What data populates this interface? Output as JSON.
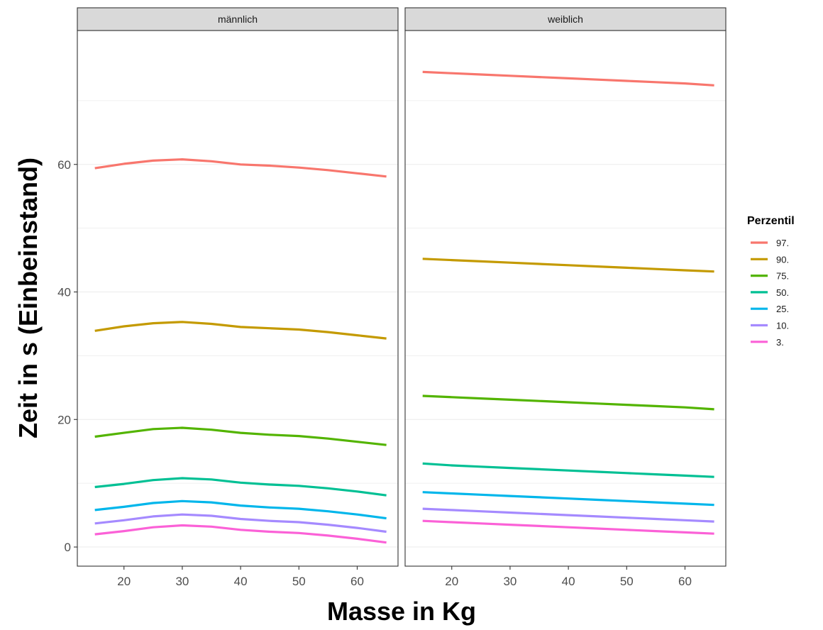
{
  "chart_data": {
    "type": "line",
    "facets": [
      "männlich",
      "weiblich"
    ],
    "xlabel": "Masse in Kg",
    "ylabel": "Zeit in s (Einbeinstand)",
    "xlim": [
      12,
      67
    ],
    "ylim": [
      -3,
      81
    ],
    "x_ticks": [
      20,
      30,
      40,
      50,
      60
    ],
    "y_ticks": [
      0,
      20,
      40,
      60
    ],
    "legend_title": "Perzentil",
    "legend_position": "right",
    "grid": true,
    "x": [
      15,
      20,
      25,
      30,
      35,
      40,
      45,
      50,
      55,
      60,
      65
    ],
    "series": [
      {
        "name": "97.",
        "color": "#F8766D",
        "values": {
          "männlich": [
            59.4,
            60.1,
            60.6,
            60.8,
            60.5,
            60.0,
            59.8,
            59.5,
            59.1,
            58.6,
            58.1
          ],
          "weiblich": [
            74.5,
            74.3,
            74.1,
            73.9,
            73.7,
            73.5,
            73.3,
            73.1,
            72.9,
            72.7,
            72.4
          ]
        }
      },
      {
        "name": "90.",
        "color": "#C49A00",
        "values": {
          "männlich": [
            33.9,
            34.6,
            35.1,
            35.3,
            35.0,
            34.5,
            34.3,
            34.1,
            33.7,
            33.2,
            32.7
          ],
          "weiblich": [
            45.2,
            45.0,
            44.8,
            44.6,
            44.4,
            44.2,
            44.0,
            43.8,
            43.6,
            43.4,
            43.2
          ]
        }
      },
      {
        "name": "75.",
        "color": "#53B400",
        "values": {
          "männlich": [
            17.3,
            17.9,
            18.5,
            18.7,
            18.4,
            17.9,
            17.6,
            17.4,
            17.0,
            16.5,
            16.0
          ],
          "weiblich": [
            23.7,
            23.5,
            23.3,
            23.1,
            22.9,
            22.7,
            22.5,
            22.3,
            22.1,
            21.9,
            21.6
          ]
        }
      },
      {
        "name": "50.",
        "color": "#00C094",
        "values": {
          "männlich": [
            9.4,
            9.9,
            10.5,
            10.8,
            10.6,
            10.1,
            9.8,
            9.6,
            9.2,
            8.7,
            8.1
          ],
          "weiblich": [
            13.1,
            12.8,
            12.6,
            12.4,
            12.2,
            12.0,
            11.8,
            11.6,
            11.4,
            11.2,
            11.0
          ]
        }
      },
      {
        "name": "25.",
        "color": "#00B6EB",
        "values": {
          "männlich": [
            5.8,
            6.3,
            6.9,
            7.2,
            7.0,
            6.5,
            6.2,
            6.0,
            5.6,
            5.1,
            4.5
          ],
          "weiblich": [
            8.6,
            8.4,
            8.2,
            8.0,
            7.8,
            7.6,
            7.4,
            7.2,
            7.0,
            6.8,
            6.6
          ]
        }
      },
      {
        "name": "10.",
        "color": "#A58AFF",
        "values": {
          "männlich": [
            3.7,
            4.2,
            4.8,
            5.1,
            4.9,
            4.4,
            4.1,
            3.9,
            3.5,
            3.0,
            2.4
          ],
          "weiblich": [
            6.0,
            5.8,
            5.6,
            5.4,
            5.2,
            5.0,
            4.8,
            4.6,
            4.4,
            4.2,
            4.0
          ]
        }
      },
      {
        "name": "3.",
        "color": "#FB61D7",
        "values": {
          "männlich": [
            2.0,
            2.5,
            3.1,
            3.4,
            3.2,
            2.7,
            2.4,
            2.2,
            1.8,
            1.3,
            0.7
          ],
          "weiblich": [
            4.1,
            3.9,
            3.7,
            3.5,
            3.3,
            3.1,
            2.9,
            2.7,
            2.5,
            2.3,
            2.1
          ]
        }
      }
    ]
  }
}
